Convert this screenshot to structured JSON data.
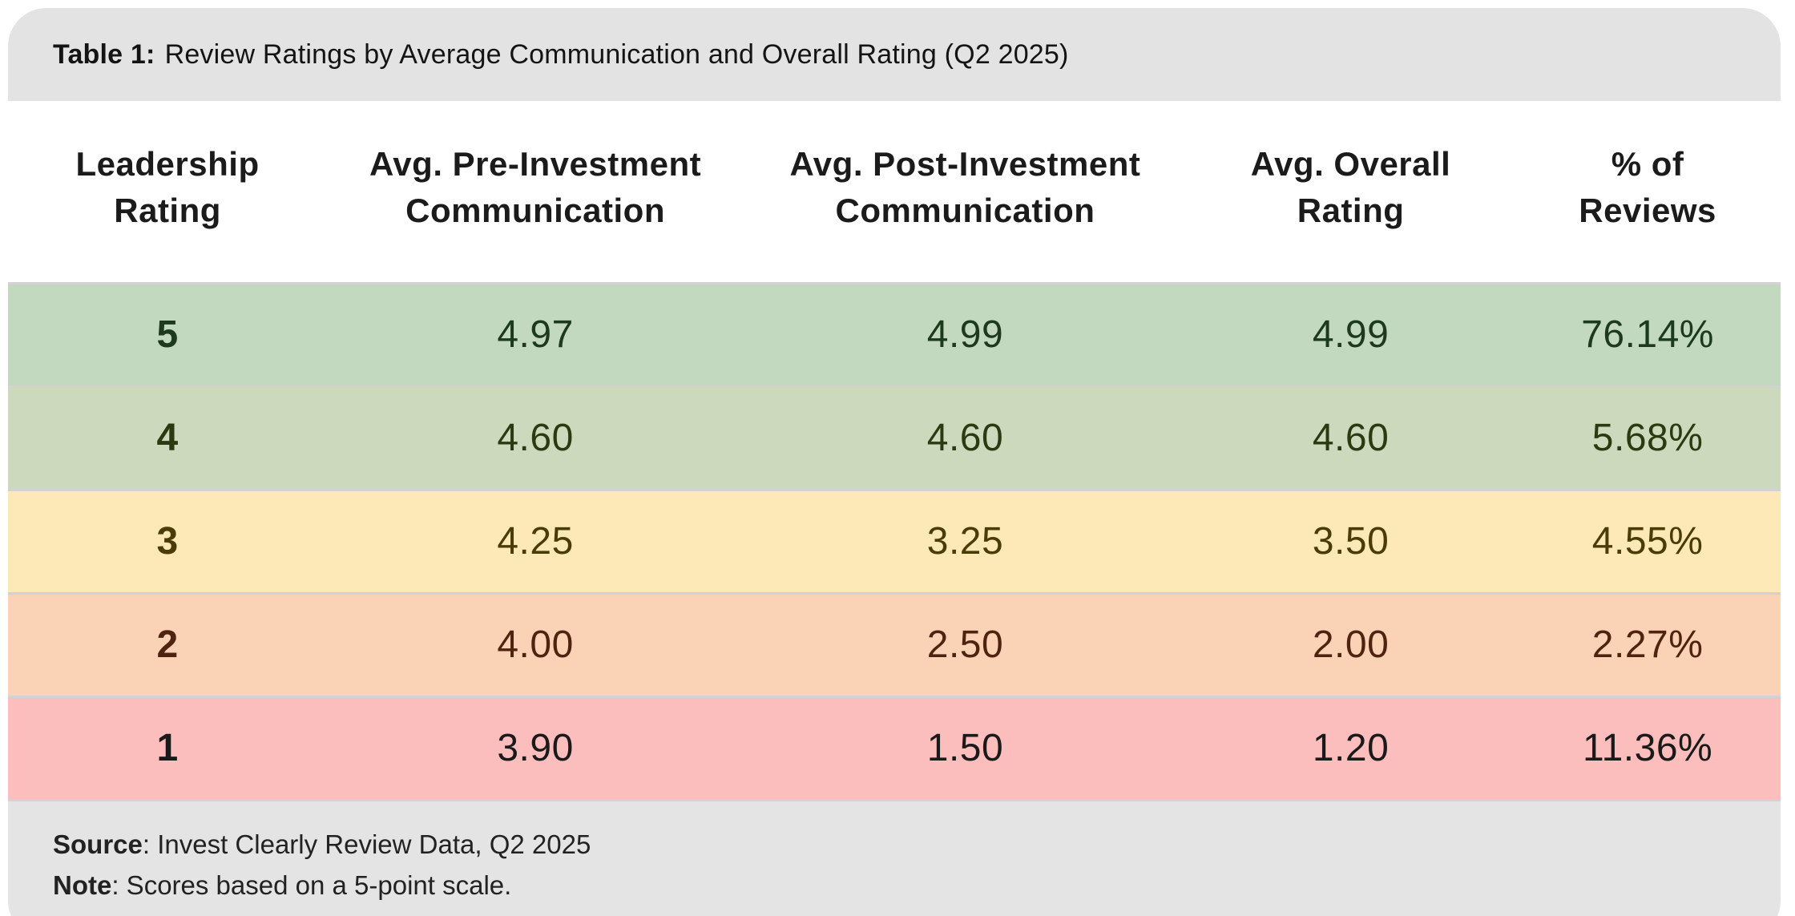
{
  "title": {
    "prefix": "Table 1:",
    "text": "Review Ratings by Average Communication and Overall Rating (Q2 2025)"
  },
  "table": {
    "columns": [
      "Leadership\nRating",
      "Avg. Pre-Investment\nCommunication",
      "Avg. Post-Investment\nCommunication",
      "Avg. Overall\nRating",
      "% of\nReviews"
    ],
    "rows": [
      {
        "rating": "5",
        "pre": "4.97",
        "post": "4.99",
        "overall": "4.99",
        "pct": "76.14%",
        "bg": "#c2d9c0",
        "fg": "#1d3a1d"
      },
      {
        "rating": "4",
        "pre": "4.60",
        "post": "4.60",
        "overall": "4.60",
        "pct": "5.68%",
        "bg": "#cdd9bc",
        "fg": "#2c3a12"
      },
      {
        "rating": "3",
        "pre": "4.25",
        "post": "3.25",
        "overall": "3.50",
        "pct": "4.55%",
        "bg": "#fde9b8",
        "fg": "#4a3c06"
      },
      {
        "rating": "2",
        "pre": "4.00",
        "post": "2.50",
        "overall": "2.00",
        "pct": "2.27%",
        "bg": "#fad3b6",
        "fg": "#4e2410"
      },
      {
        "rating": "1",
        "pre": "3.90",
        "post": "1.50",
        "overall": "1.20",
        "pct": "11.36%",
        "bg": "#fcbdbd",
        "fg": "#1a1a1a"
      }
    ]
  },
  "footer": {
    "source_label": "Source",
    "source_text": ": Invest Clearly Review Data, Q2 2025",
    "note_label": "Note",
    "note_text": ": Scores based on a 5-point scale."
  },
  "colors": {
    "title_bar": "#e3e3e3",
    "footer_bar": "#e4e4e4",
    "separator": "#d2d2d2",
    "body_bg": "#ffffff"
  },
  "chart_data": {
    "type": "table",
    "title": "Table 1: Review Ratings by Average Communication and Overall Rating (Q2 2025)",
    "columns": [
      "Leadership Rating",
      "Avg. Pre-Investment Communication",
      "Avg. Post-Investment Communication",
      "Avg. Overall Rating",
      "% of Reviews"
    ],
    "rows": [
      [
        5,
        4.97,
        4.99,
        4.99,
        "76.14%"
      ],
      [
        4,
        4.6,
        4.6,
        4.6,
        "5.68%"
      ],
      [
        3,
        4.25,
        3.25,
        3.5,
        "4.55%"
      ],
      [
        2,
        4.0,
        2.5,
        2.0,
        "2.27%"
      ],
      [
        1,
        3.9,
        1.5,
        1.2,
        "11.36%"
      ]
    ],
    "row_scale_colors": [
      "#c2d9c0",
      "#cdd9bc",
      "#fde9b8",
      "#fad3b6",
      "#fcbdbd"
    ],
    "source": "Invest Clearly Review Data, Q2 2025",
    "note": "Scores based on a 5-point scale."
  }
}
